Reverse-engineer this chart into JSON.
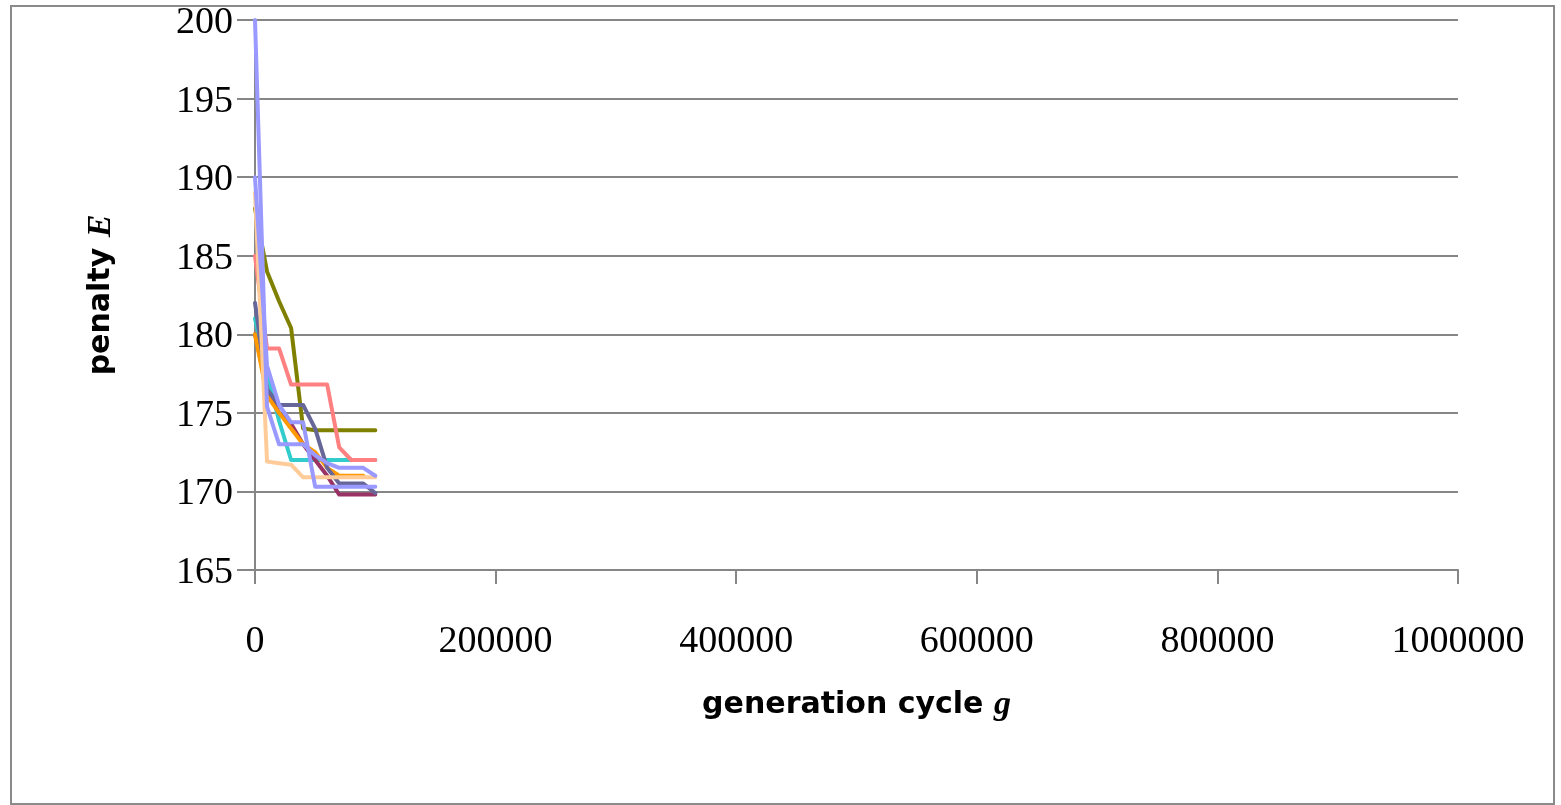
{
  "chart_data": {
    "type": "line",
    "xlabel": "generation cycle g",
    "ylabel": "penalty E",
    "x": [
      0,
      10000,
      20000,
      30000,
      40000,
      50000,
      60000,
      70000,
      80000,
      90000,
      100000
    ],
    "series": [
      {
        "color": "#808000",
        "values": [
          188,
          184,
          182.1,
          180.4,
          174,
          173.9,
          173.9,
          173.9,
          173.9,
          173.9,
          173.9
        ]
      },
      {
        "color": "#33cccc",
        "values": [
          181,
          177.5,
          174.5,
          172,
          172,
          172,
          172,
          172,
          172,
          172,
          172
        ]
      },
      {
        "color": "#ff8080",
        "values": [
          185,
          179.1,
          179.1,
          176.8,
          176.8,
          176.8,
          176.8,
          172.8,
          172,
          172,
          172
        ]
      },
      {
        "color": "#993366",
        "values": [
          180,
          176.5,
          175,
          174.3,
          173,
          172,
          171,
          169.8,
          169.8,
          169.8,
          169.8
        ]
      },
      {
        "color": "#ff9900",
        "values": [
          180,
          176.1,
          175,
          174,
          173,
          172.5,
          171.5,
          171,
          171,
          171,
          null
        ]
      },
      {
        "color": "#666699",
        "values": [
          182,
          176.5,
          175.5,
          175.5,
          175.5,
          174,
          171.5,
          170.5,
          170.5,
          170.5,
          169.9
        ]
      },
      {
        "color": "#ffcc99",
        "values": [
          189,
          171.9,
          171.8,
          171.7,
          170.9,
          170.9,
          170.9,
          170.9,
          170.9,
          170.9,
          170.9
        ]
      },
      {
        "color": "#9999ff",
        "values": [
          190,
          178,
          175.5,
          174.4,
          174.4,
          170.3,
          170.3,
          170.3,
          170.3,
          170.3,
          170.3
        ]
      },
      {
        "color": "#9999ff",
        "values": [
          200,
          175.4,
          173,
          173,
          173,
          172.3,
          171.8,
          171.5,
          171.5,
          171.5,
          171
        ]
      }
    ],
    "xlim": [
      0,
      1000000
    ],
    "xticks": [
      0,
      200000,
      400000,
      600000,
      800000,
      1000000
    ],
    "ylim": [
      165,
      200
    ],
    "yticks": [
      165,
      170,
      175,
      180,
      185,
      190,
      195,
      200
    ],
    "grid": "y",
    "marker": "none",
    "line_style": "solid"
  }
}
